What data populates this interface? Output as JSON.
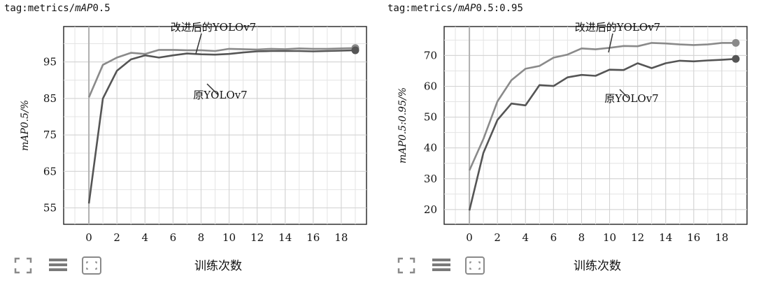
{
  "panels": [
    {
      "tag": "tag:metrics/",
      "tag_italic": "mAP",
      "tag_rest": "0.5",
      "ylabel": "mAP0.5/%",
      "chart_data": {
        "type": "line",
        "xlabel": "训练次数",
        "ylabel": "mAP0.5/%",
        "xlim": [
          -1.8,
          19.8
        ],
        "ylim": [
          50.5,
          104.7
        ],
        "xticks": [
          0,
          2,
          4,
          6,
          8,
          10,
          12,
          14,
          16,
          18
        ],
        "yticks": [
          55,
          65,
          75,
          85,
          95
        ],
        "grid": true,
        "x": [
          0,
          1,
          2,
          3,
          4,
          5,
          6,
          7,
          8,
          9,
          10,
          11,
          12,
          13,
          14,
          15,
          16,
          17,
          18,
          19
        ],
        "series": [
          {
            "name": "改进后的YOLOv7",
            "color": "#8a8a8a",
            "values": [
              85.3,
              94.2,
              96.2,
              97.5,
              97.2,
              98.3,
              98.3,
              98.2,
              98.2,
              98.0,
              98.6,
              98.5,
              98.4,
              98.6,
              98.5,
              98.7,
              98.6,
              98.6,
              98.7,
              98.8
            ]
          },
          {
            "name": "原YOLOv7",
            "color": "#555555",
            "values": [
              56.2,
              85.0,
              92.6,
              95.7,
              96.8,
              96.2,
              96.8,
              97.3,
              97.1,
              97.0,
              97.2,
              97.6,
              97.9,
              98.0,
              98.0,
              98.0,
              97.9,
              98.0,
              98.1,
              98.2
            ]
          }
        ],
        "annotations": [
          "改进后的YOLOv7",
          "原YOLOv7"
        ]
      }
    },
    {
      "tag": "tag:metrics/",
      "tag_italic": "mAP",
      "tag_rest": "0.5:0.95",
      "ylabel": "mAP0.5:0.95/%",
      "chart_data": {
        "type": "line",
        "xlabel": "训练次数",
        "ylabel": "mAP0.5:0.95/%",
        "xlim": [
          -1.8,
          19.8
        ],
        "ylim": [
          15.2,
          79.4
        ],
        "xticks": [
          0,
          2,
          4,
          6,
          8,
          10,
          12,
          14,
          16,
          18
        ],
        "yticks": [
          20,
          30,
          40,
          50,
          60,
          70
        ],
        "grid": true,
        "x": [
          0,
          1,
          2,
          3,
          4,
          5,
          6,
          7,
          8,
          9,
          10,
          11,
          12,
          13,
          14,
          15,
          16,
          17,
          18,
          19
        ],
        "series": [
          {
            "name": "改进后的YOLOv7",
            "color": "#8a8a8a",
            "values": [
              32.7,
              42.9,
              55.1,
              62.0,
              65.7,
              66.6,
              69.3,
              70.3,
              72.3,
              72.0,
              72.5,
              73.1,
              73.0,
              74.1,
              73.9,
              73.6,
              73.4,
              73.6,
              74.1,
              74.1
            ]
          },
          {
            "name": "原YOLOv7",
            "color": "#555555",
            "values": [
              19.7,
              38.4,
              49.1,
              54.4,
              53.8,
              60.4,
              60.1,
              62.9,
              63.7,
              63.4,
              65.4,
              65.3,
              67.5,
              65.9,
              67.5,
              68.3,
              68.1,
              68.4,
              68.6,
              68.9
            ]
          }
        ],
        "annotations": [
          "改进后的YOLOv7",
          "原YOLOv7"
        ]
      }
    }
  ]
}
